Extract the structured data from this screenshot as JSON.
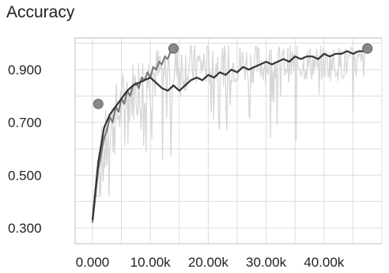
{
  "chart_data": {
    "type": "line",
    "title": "Accuracy",
    "xlabel": "",
    "ylabel": "",
    "xlim": [
      -3000,
      50000
    ],
    "ylim": [
      0.24,
      1.02
    ],
    "x_ticks": [
      0,
      10000,
      20000,
      30000,
      40000
    ],
    "x_tick_labels": [
      "0.000",
      "10.00k",
      "20.00k",
      "30.00k",
      "40.00k"
    ],
    "y_ticks": [
      0.3,
      0.5,
      0.7,
      0.9
    ],
    "y_tick_labels": [
      "0.300",
      "0.500",
      "0.700",
      "0.900"
    ],
    "grid": true,
    "legend": "none",
    "colors": {
      "run_a": "#7a7a7a",
      "run_b": "#333333",
      "raw": "#d6d6d6",
      "grid": "#dcdcdc"
    },
    "series": [
      {
        "style": "raw-noisy",
        "x_range": [
          0,
          47000
        ],
        "y_range": [
          0.42,
          0.99
        ]
      },
      {
        "style": "smoothed",
        "x": [
          0,
          500,
          1000,
          1500,
          2000,
          2500,
          3000,
          3500,
          4000,
          4500,
          5000,
          5500,
          6000,
          6500,
          7000,
          7500,
          8000,
          8500,
          9000,
          9500,
          10000,
          10500,
          11000,
          11500,
          12000,
          12500,
          13000,
          13500,
          14000
        ],
        "y": [
          0.32,
          0.42,
          0.52,
          0.58,
          0.64,
          0.67,
          0.72,
          0.7,
          0.76,
          0.74,
          0.79,
          0.77,
          0.82,
          0.8,
          0.84,
          0.85,
          0.83,
          0.87,
          0.86,
          0.89,
          0.87,
          0.91,
          0.9,
          0.93,
          0.92,
          0.95,
          0.94,
          0.97,
          0.98
        ],
        "end_marker": true
      },
      {
        "style": "smoothed",
        "x": [
          0,
          1000,
          2000,
          3000,
          4000,
          5000,
          6000,
          7000,
          8000,
          9000,
          10000,
          11000,
          12000,
          13000,
          14000,
          15000,
          16000,
          17000,
          18000,
          19000,
          20000,
          21000,
          22000,
          23000,
          24000,
          25000,
          26000,
          27000,
          28000,
          29000,
          30000,
          31000,
          32000,
          33000,
          34000,
          35000,
          36000,
          37000,
          38000,
          39000,
          40000,
          41000,
          42000,
          43000,
          44000,
          45000,
          46000,
          47000,
          47500
        ],
        "y": [
          0.33,
          0.55,
          0.68,
          0.73,
          0.76,
          0.79,
          0.82,
          0.84,
          0.85,
          0.86,
          0.87,
          0.85,
          0.83,
          0.82,
          0.84,
          0.82,
          0.84,
          0.86,
          0.87,
          0.86,
          0.88,
          0.87,
          0.89,
          0.88,
          0.9,
          0.89,
          0.91,
          0.9,
          0.91,
          0.92,
          0.93,
          0.92,
          0.93,
          0.94,
          0.93,
          0.95,
          0.94,
          0.95,
          0.95,
          0.94,
          0.96,
          0.95,
          0.96,
          0.96,
          0.97,
          0.96,
          0.97,
          0.97,
          0.98
        ],
        "end_marker": true
      }
    ],
    "start_marker": {
      "x": 1000,
      "y": 0.77
    }
  }
}
